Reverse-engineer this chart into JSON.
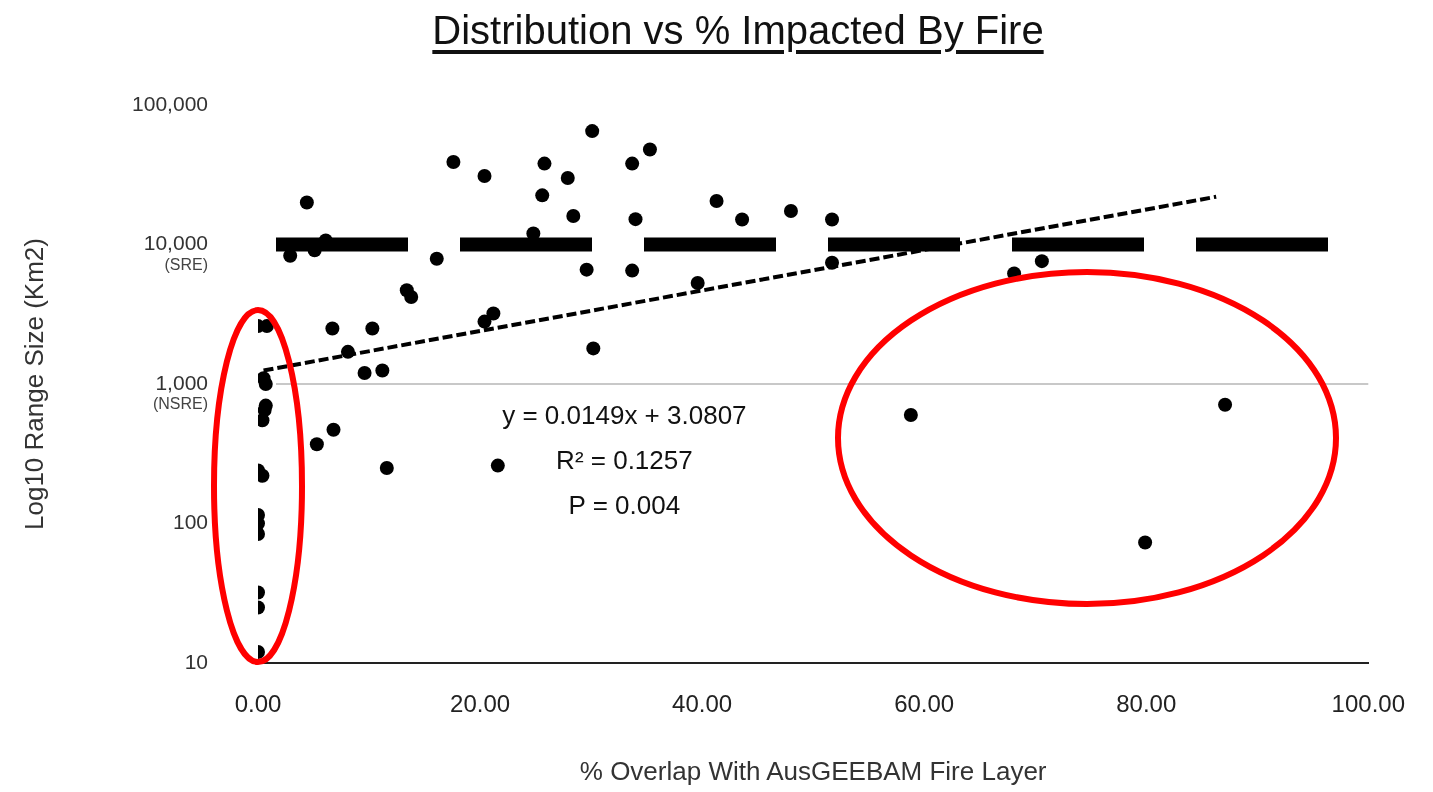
{
  "chart_data": {
    "type": "scatter",
    "title": "Distribution vs % Impacted By Fire",
    "xlabel": "% Overlap With AusGEEBAM Fire Layer",
    "ylabel": "Log10 Range Size (Km2)",
    "log": "y",
    "grid": false,
    "legend": false,
    "marker": "circle",
    "xlim": [
      0,
      100
    ],
    "xticks": [
      {
        "value": 0,
        "label": "0.00"
      },
      {
        "value": 20,
        "label": "20.00"
      },
      {
        "value": 40,
        "label": "40.00"
      },
      {
        "value": 60,
        "label": "60.00"
      },
      {
        "value": 80,
        "label": "80.00"
      },
      {
        "value": 100,
        "label": "100.00"
      }
    ],
    "ylim": [
      10,
      100000
    ],
    "yticks": [
      10,
      100,
      {
        "value": 1000,
        "label": "1,000"
      },
      {
        "value": 10000,
        "label": "10,000"
      },
      {
        "value": 100000,
        "label": "100,000"
      }
    ],
    "series": [
      {
        "type": "scatter",
        "color": "#000000",
        "x": [
          0.0,
          0.8,
          0.5,
          0.7,
          0.7,
          0.4,
          0.6,
          0.0,
          0.4,
          0.0,
          0.0,
          0.0,
          0.0,
          0.0,
          0.0,
          6.7,
          10.3,
          8.1,
          9.6,
          11.2,
          5.3,
          6.8,
          11.6,
          21.6,
          4.4,
          2.9,
          5.1,
          6.1,
          16.1,
          13.4,
          13.8,
          20.4,
          21.2,
          17.6,
          20.4,
          25.8,
          27.9,
          25.6,
          28.4,
          24.8,
          30.1,
          29.6,
          30.2,
          33.7,
          35.3,
          34.0,
          33.7,
          39.6,
          41.3,
          43.6,
          48.0,
          51.7,
          51.7,
          58.8,
          68.1,
          70.6,
          79.9,
          87.1
        ],
        "values": [
          2600,
          2600,
          1100,
          1000,
          700,
          550,
          650,
          240,
          220,
          115,
          100,
          84,
          32,
          25,
          12,
          2500,
          2500,
          1700,
          1200,
          1250,
          370,
          470,
          250,
          260,
          20000,
          8300,
          9100,
          10700,
          7900,
          4700,
          4200,
          2800,
          3200,
          39000,
          31000,
          38000,
          30000,
          22500,
          16000,
          12000,
          65000,
          6600,
          1800,
          38000,
          48000,
          15200,
          6500,
          5300,
          20500,
          15100,
          17400,
          15100,
          7400,
          600,
          6200,
          7600,
          73,
          710
        ]
      },
      {
        "type": "line",
        "color": "#000000",
        "marker": "none",
        "line_style": "dashed",
        "x": [
          0.5,
          86.3
        ],
        "values": [
          1250,
          22000
        ]
      }
    ],
    "ref_lines": [
      {
        "axis": "y",
        "value": 10000,
        "color": "#000000",
        "line_style": "dashed"
      },
      {
        "axis": "y",
        "value": 1000,
        "color": "#c8c8c8",
        "line_style": "solid"
      }
    ],
    "annotations": [
      "y = 0.0149x + 3.0807",
      "R² = 0.1257",
      "P = 0.004",
      "(SRE)",
      "(NSRE)"
    ]
  }
}
